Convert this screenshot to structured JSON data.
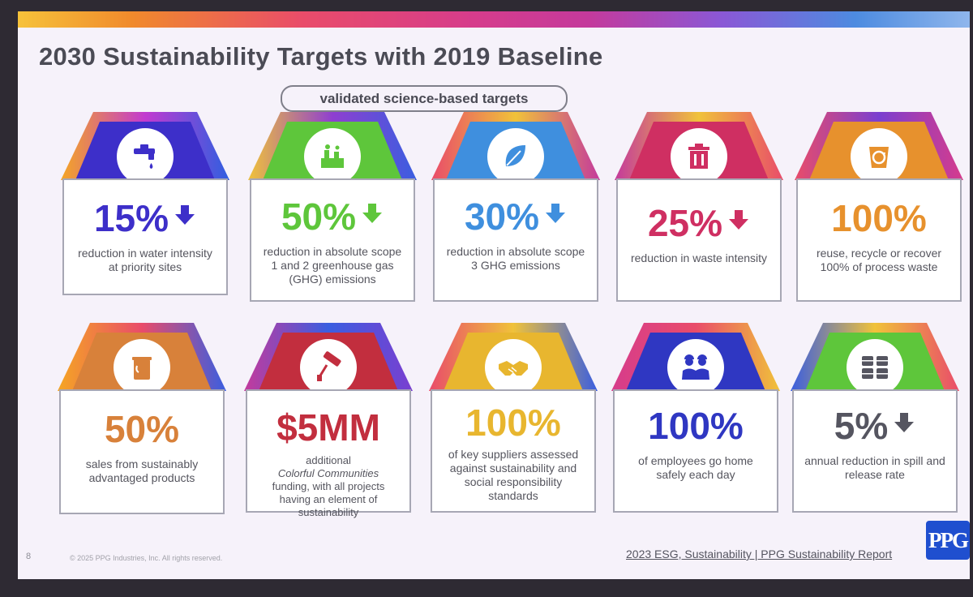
{
  "slide": {
    "title": "2030 Sustainability Targets with 2019 Baseline",
    "pill_label": "validated science-based targets"
  },
  "cards": [
    {
      "icon": "water-tap-icon",
      "value": "15%",
      "trend": "down",
      "desc": "reduction in water intensity at priority sites",
      "accent": "#3d2fc9"
    },
    {
      "icon": "factory-emissions-icon",
      "value": "50%",
      "trend": "down",
      "desc": "reduction in absolute scope 1 and 2 greenhouse gas (GHG) emissions",
      "accent": "#5ec63b"
    },
    {
      "icon": "leaf-icon",
      "value": "30%",
      "trend": "down",
      "desc": "reduction in absolute scope 3 GHG emissions",
      "accent": "#3f8fde"
    },
    {
      "icon": "trash-bin-icon",
      "value": "25%",
      "trend": "down",
      "desc": "reduction in waste intensity",
      "accent": "#cf2f62"
    },
    {
      "icon": "recycle-bin-icon",
      "value": "100%",
      "trend": "none",
      "desc": "reuse, recycle or recover 100% of process waste",
      "accent": "#e7912d"
    },
    {
      "icon": "paint-can-icon",
      "value": "50%",
      "trend": "none",
      "desc": "sales from sustainably advantaged products",
      "accent": "#d8813a"
    },
    {
      "icon": "paint-roller-icon",
      "value": "$5MM",
      "trend": "none",
      "desc_lines": [
        "additional",
        "Colorful Communities",
        "funding, with all projects having an element of sustainability"
      ],
      "accent": "#c22e3e"
    },
    {
      "icon": "handshake-icon",
      "value": "100%",
      "trend": "none",
      "desc": "of key suppliers assessed against sustainability and social responsibility standards",
      "accent": "#e8b62f"
    },
    {
      "icon": "workers-icon",
      "value": "100%",
      "trend": "none",
      "desc": "of employees go home safely each day",
      "accent": "#2f37c2"
    },
    {
      "icon": "barrels-icon",
      "value": "5%",
      "trend": "down",
      "desc": "annual reduction in spill and release rate",
      "accent": "#555560"
    }
  ],
  "footer": {
    "page_number": "8",
    "copyright": "© 2025 PPG Industries, Inc. All rights reserved.",
    "report_link": "2023 ESG, Sustainability | PPG Sustainability Report",
    "logo_text": "PPG"
  }
}
